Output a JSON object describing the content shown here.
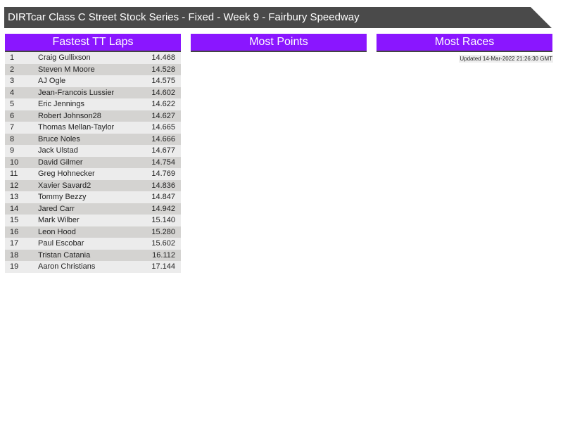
{
  "title": "DIRTcar Class C Street Stock Series - Fixed - Week 9 - Fairbury Speedway",
  "panels": [
    {
      "title": "Fastest TT Laps"
    },
    {
      "title": "Most Points"
    },
    {
      "title": "Most Races"
    }
  ],
  "updated": "Updated 14-Mar-2022 21:26:30 GMT",
  "laps": [
    [
      "1",
      "Craig Gullixson",
      "14.468"
    ],
    [
      "2",
      "Steven M Moore",
      "14.528"
    ],
    [
      "3",
      "AJ Ogle",
      "14.575"
    ],
    [
      "4",
      "Jean-Francois Lussier",
      "14.602"
    ],
    [
      "5",
      "Eric Jennings",
      "14.622"
    ],
    [
      "6",
      "Robert Johnson28",
      "14.627"
    ],
    [
      "7",
      "Thomas Mellan-Taylor",
      "14.665"
    ],
    [
      "8",
      "Bruce Noles",
      "14.666"
    ],
    [
      "9",
      "Jack Ulstad",
      "14.677"
    ],
    [
      "10",
      "David Gilmer",
      "14.754"
    ],
    [
      "11",
      "Greg Hohnecker",
      "14.769"
    ],
    [
      "12",
      "Xavier Savard2",
      "14.836"
    ],
    [
      "13",
      "Tommy Bezzy",
      "14.847"
    ],
    [
      "14",
      "Jared Carr",
      "14.942"
    ],
    [
      "15",
      "Mark Wilber",
      "15.140"
    ],
    [
      "16",
      "Leon Hood",
      "15.280"
    ],
    [
      "17",
      "Paul Escobar",
      "15.602"
    ],
    [
      "18",
      "Tristan Catania",
      "16.112"
    ],
    [
      "19",
      "Aaron Christians",
      "17.144"
    ]
  ],
  "colors": {
    "accent": "#8a16ff",
    "titlebar": "#4a4a4a"
  }
}
